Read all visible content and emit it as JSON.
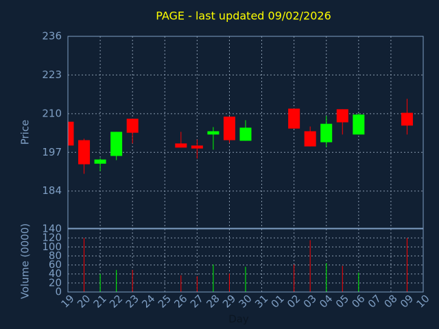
{
  "chart_data": {
    "type": "candlestick",
    "title": "PAGE - last updated 09/02/2026",
    "ylabel": "Price",
    "xlabel": "Day",
    "volume_ylabel": "Volume (0000)",
    "categories": [
      "19",
      "20",
      "21",
      "22",
      "23",
      "24",
      "25",
      "26",
      "27",
      "28",
      "29",
      "30",
      "31",
      "01",
      "02",
      "03",
      "04",
      "05",
      "06",
      "07",
      "08",
      "09",
      "10"
    ],
    "open": [
      207.3,
      201.1,
      193.2,
      195.8,
      208.3,
      null,
      null,
      200,
      199.3,
      203,
      209,
      200.9,
      null,
      null,
      211.7,
      204.1,
      200.4,
      211.5,
      203,
      null,
      null,
      210.3,
      null
    ],
    "high": [
      207.3,
      201.6,
      195,
      203.9,
      208.3,
      null,
      null,
      203.9,
      201.3,
      205.5,
      209,
      207.8,
      null,
      null,
      211.7,
      205.7,
      209.2,
      211.5,
      210.1,
      null,
      null,
      215,
      null
    ],
    "low": [
      199.3,
      189.8,
      190.7,
      194.4,
      200,
      null,
      null,
      198.6,
      194.9,
      197.9,
      200.2,
      200.9,
      null,
      null,
      205,
      199,
      198.8,
      203,
      203,
      null,
      null,
      203,
      null
    ],
    "close": [
      199.3,
      193,
      194.6,
      203.9,
      203.6,
      null,
      null,
      198.6,
      198.3,
      204.1,
      201.1,
      205.3,
      null,
      null,
      205,
      199,
      206.6,
      207.1,
      209.7,
      null,
      null,
      206,
      null
    ],
    "volume": [
      null,
      120,
      40,
      49,
      49,
      null,
      null,
      37,
      35,
      61,
      41,
      56,
      null,
      null,
      61,
      115,
      64,
      58,
      43,
      null,
      null,
      120,
      null
    ],
    "ylim": [
      171.5,
      236
    ],
    "yticks": [
      184,
      197,
      210,
      223,
      236
    ],
    "volume_ylim": [
      0,
      140
    ],
    "volume_yticks": [
      0,
      20,
      40,
      60,
      80,
      100,
      120,
      140
    ],
    "grid": true,
    "up_color": "#00ff00",
    "down_color": "#ff0000"
  }
}
